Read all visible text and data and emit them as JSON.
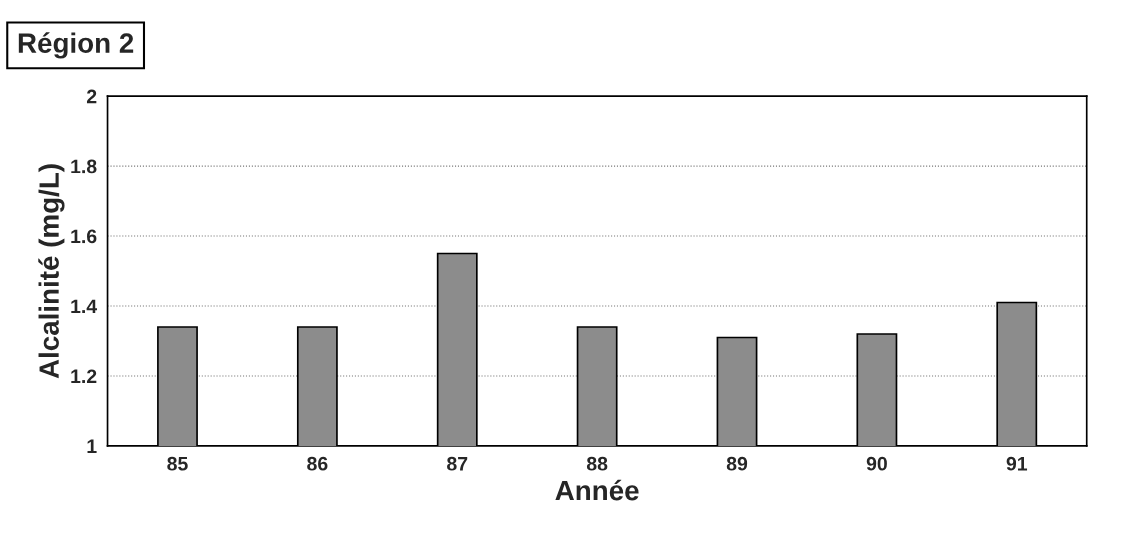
{
  "chart_data": {
    "type": "bar",
    "title": "Région 2",
    "xlabel": "Année",
    "ylabel": "Alcalinité (mg/L)",
    "categories": [
      "85",
      "86",
      "87",
      "88",
      "89",
      "90",
      "91"
    ],
    "values": [
      1.34,
      1.34,
      1.55,
      1.34,
      1.31,
      1.32,
      1.41
    ],
    "color": "#8c8c8c",
    "ylim": [
      1,
      2
    ],
    "yticks": [
      1,
      1.2,
      1.4,
      1.6,
      1.8,
      2
    ],
    "grid": "y"
  }
}
